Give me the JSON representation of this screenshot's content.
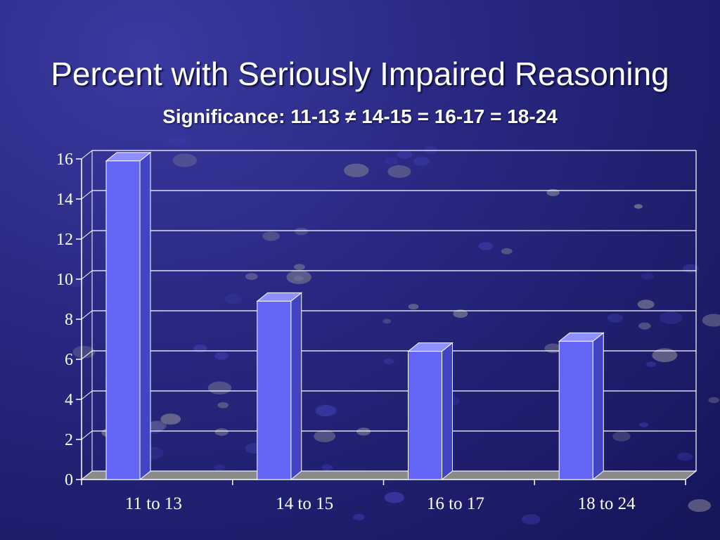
{
  "slide": {
    "title": "Percent with Seriously Impaired Reasoning",
    "subtitle": "Significance: 11-13 ≠ 14-15 = 16-17 = 18-24"
  },
  "chart_data": {
    "type": "bar",
    "categories": [
      "11 to 13",
      "14 to 15",
      "16 to 17",
      "18 to 24"
    ],
    "values": [
      15.9,
      8.9,
      6.4,
      6.9
    ],
    "ylim": [
      0,
      16
    ],
    "yticks": [
      "0",
      "2",
      "4",
      "6",
      "8",
      "10",
      "12",
      "14",
      "16"
    ],
    "grid": true,
    "style": "3d-bar",
    "colors": {
      "bar_front": "#6466f8",
      "bar_top": "#8e90ff",
      "bar_side": "#4244c4",
      "grid": "#ffffff",
      "floor": "#8a8a8a"
    }
  }
}
